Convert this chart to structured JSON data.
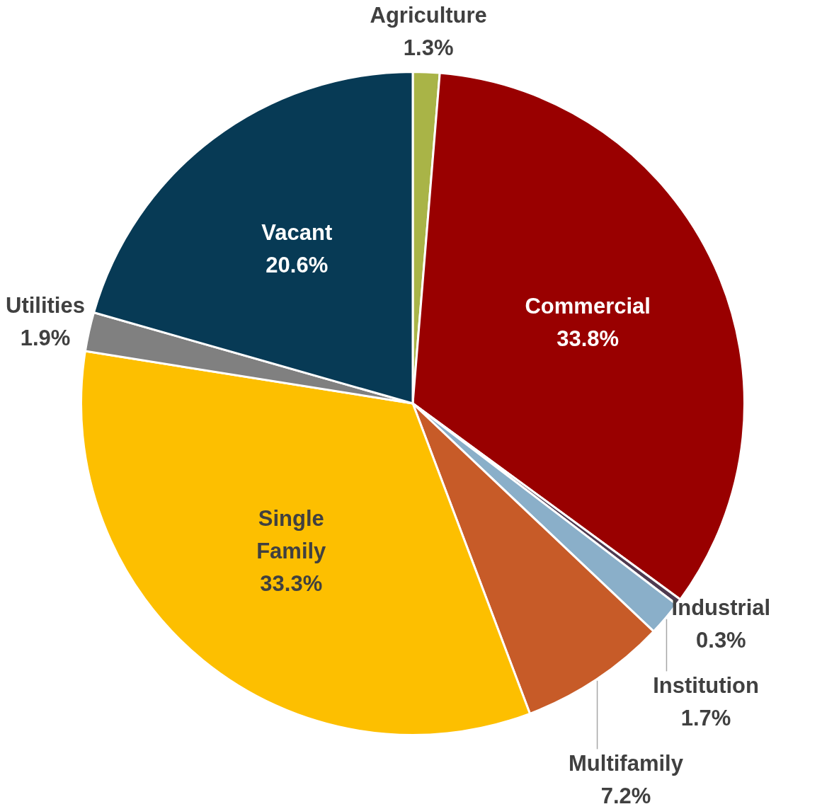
{
  "chart_data": {
    "type": "pie",
    "categories": [
      "Agriculture",
      "Commercial",
      "Industrial",
      "Institution",
      "Multifamily",
      "Single Family",
      "Utilities",
      "Vacant"
    ],
    "values": [
      1.3,
      33.8,
      0.3,
      1.7,
      7.2,
      33.3,
      1.9,
      20.6
    ],
    "colors": [
      "#a9b447",
      "#990000",
      "#4e3a50",
      "#8aafc9",
      "#c75b28",
      "#fdbf00",
      "#808080",
      "#073a55"
    ],
    "value_labels": [
      "1.3%",
      "33.8%",
      "0.3%",
      "1.7%",
      "7.2%",
      "33.3%",
      "1.9%",
      "20.6%"
    ],
    "legend": false
  }
}
